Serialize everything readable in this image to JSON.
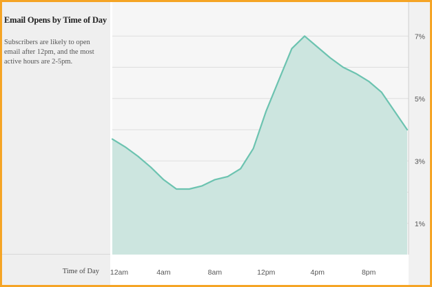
{
  "sidebar": {
    "title": "Email Opens by Time of Day",
    "description": "Subscribers are likely to open email after 12pm, and the most active hours are 2-5pm."
  },
  "colors": {
    "frame": "#f5a425",
    "line": "#6cc3b0",
    "fill": "#cce5df"
  },
  "chart_data": {
    "type": "area",
    "title": "Email Opens by Time of Day",
    "xlabel": "Time of Day",
    "ylabel": "",
    "x": [
      0,
      1,
      2,
      3,
      4,
      5,
      6,
      7,
      8,
      9,
      10,
      11,
      12,
      13,
      14,
      15,
      16,
      17,
      18,
      19,
      20,
      21,
      22,
      23
    ],
    "values": [
      3.7,
      3.45,
      3.15,
      2.8,
      2.4,
      2.1,
      2.1,
      2.2,
      2.4,
      2.5,
      2.75,
      3.4,
      4.6,
      5.6,
      6.6,
      7.0,
      6.65,
      6.3,
      6.0,
      5.8,
      5.55,
      5.2,
      4.6,
      4.0
    ],
    "x_ticks": [
      {
        "x": 0,
        "label": "12am"
      },
      {
        "x": 4,
        "label": "4am"
      },
      {
        "x": 8,
        "label": "8am"
      },
      {
        "x": 12,
        "label": "12pm"
      },
      {
        "x": 16,
        "label": "4pm"
      },
      {
        "x": 20,
        "label": "8pm"
      }
    ],
    "y_ticks": [
      {
        "y": 1,
        "label": "1%"
      },
      {
        "y": 3,
        "label": "3%"
      },
      {
        "y": 5,
        "label": "5%"
      },
      {
        "y": 7,
        "label": "7%"
      }
    ],
    "gridlines_y": [
      1,
      2,
      3,
      4,
      5,
      6,
      7
    ],
    "xlim": [
      0,
      23
    ],
    "ylim": [
      0,
      8
    ],
    "grid": true,
    "y_axis_side": "right"
  }
}
